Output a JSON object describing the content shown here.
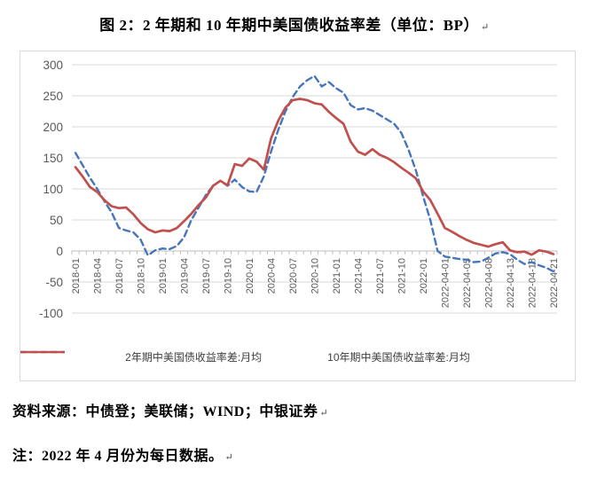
{
  "page": {
    "title": "图 2：2 年期和 10 年期中美国债收益率差（单位：BP）",
    "paragraph_mark": "↵",
    "source_note": "资料来源：中债登；美联储；WIND；中银证券",
    "footnote": "注：2022 年 4 月份为每日数据。"
  },
  "colors": {
    "series_2y": "#4575BC",
    "series_10y": "#C0504D",
    "gridline": "#D9D9D9",
    "axis_line": "#BFBFBF",
    "tick_label": "#595959",
    "legend_text": "#404040"
  },
  "chart_data": {
    "type": "line",
    "title": "图 2：2 年期和 10 年期中美国债收益率差（单位：BP）",
    "unit": "BP",
    "grid": true,
    "legend_position": "bottom",
    "ylim": [
      -100,
      300
    ],
    "yticks": [
      300,
      250,
      200,
      150,
      100,
      50,
      0,
      -50,
      -100
    ],
    "note": "2022 年 4 月份为每日数据",
    "categories": [
      "2018-01",
      "2018-02",
      "2018-03",
      "2018-04",
      "2018-05",
      "2018-06",
      "2018-07",
      "2018-08",
      "2018-09",
      "2018-10",
      "2018-11",
      "2018-12",
      "2019-01",
      "2019-02",
      "2019-03",
      "2019-04",
      "2019-05",
      "2019-06",
      "2019-07",
      "2019-08",
      "2019-09",
      "2019-10",
      "2019-11",
      "2019-12",
      "2020-01",
      "2020-02",
      "2020-03",
      "2020-04",
      "2020-05",
      "2020-06",
      "2020-07",
      "2020-08",
      "2020-09",
      "2020-10",
      "2020-11",
      "2020-12",
      "2021-01",
      "2021-02",
      "2021-03",
      "2021-04",
      "2021-05",
      "2021-06",
      "2021-07",
      "2021-08",
      "2021-09",
      "2021-10",
      "2021-11",
      "2021-12",
      "2022-01",
      "2022-02",
      "2022-03",
      "2022-04-01",
      "2022-04-02",
      "2022-04-04",
      "2022-04-05",
      "2022-04-06",
      "2022-04-07",
      "2022-04-08",
      "2022-04-11",
      "2022-04-12",
      "2022-04-13",
      "2022-04-14",
      "2022-04-15",
      "2022-04-18",
      "2022-04-19",
      "2022-04-20",
      "2022-04-21"
    ],
    "x_tick_labels": [
      {
        "i": 0,
        "label": "2018-01"
      },
      {
        "i": 3,
        "label": "2018-04"
      },
      {
        "i": 6,
        "label": "2018-07"
      },
      {
        "i": 9,
        "label": "2018-10"
      },
      {
        "i": 12,
        "label": "2019-01"
      },
      {
        "i": 15,
        "label": "2019-04"
      },
      {
        "i": 18,
        "label": "2019-07"
      },
      {
        "i": 21,
        "label": "2019-10"
      },
      {
        "i": 24,
        "label": "2020-01"
      },
      {
        "i": 27,
        "label": "2020-04"
      },
      {
        "i": 30,
        "label": "2020-07"
      },
      {
        "i": 33,
        "label": "2020-10"
      },
      {
        "i": 36,
        "label": "2021-01"
      },
      {
        "i": 39,
        "label": "2021-04"
      },
      {
        "i": 42,
        "label": "2021-07"
      },
      {
        "i": 45,
        "label": "2021-10"
      },
      {
        "i": 48,
        "label": "2022-01"
      },
      {
        "i": 51,
        "label": "2022-04-01"
      },
      {
        "i": 54,
        "label": "2022-04-05"
      },
      {
        "i": 57,
        "label": "2022-04-08"
      },
      {
        "i": 60,
        "label": "2022-04-13"
      },
      {
        "i": 63,
        "label": "2022-04-18"
      },
      {
        "i": 66,
        "label": "2022-04-21"
      }
    ],
    "series": [
      {
        "name": "2年期中美国债收益率差:月均",
        "style": "dashed",
        "color": "#4575BC",
        "values": [
          158,
          138,
          118,
          100,
          80,
          62,
          37,
          33,
          30,
          18,
          -7,
          1,
          4,
          3,
          8,
          22,
          50,
          70,
          90,
          105,
          113,
          105,
          115,
          103,
          96,
          95,
          120,
          160,
          195,
          225,
          248,
          265,
          275,
          282,
          265,
          272,
          262,
          255,
          235,
          228,
          230,
          226,
          219,
          212,
          205,
          190,
          163,
          130,
          88,
          50,
          0,
          -9,
          -11,
          -13,
          -14,
          -18,
          -17,
          -11,
          -4,
          -2,
          -5,
          -14,
          -21,
          -18,
          -23,
          -27,
          -33
        ]
      },
      {
        "name": "10年期中美国债收益率差:月均",
        "style": "solid",
        "color": "#C0504D",
        "values": [
          135,
          120,
          103,
          95,
          82,
          72,
          69,
          70,
          59,
          45,
          35,
          30,
          33,
          32,
          37,
          48,
          60,
          74,
          86,
          105,
          113,
          106,
          140,
          137,
          149,
          144,
          131,
          181,
          210,
          231,
          243,
          245,
          243,
          238,
          236,
          224,
          214,
          205,
          176,
          160,
          155,
          164,
          155,
          150,
          143,
          134,
          126,
          117,
          96,
          82,
          60,
          37,
          31,
          24,
          18,
          13,
          10,
          7,
          11,
          14,
          1,
          -2,
          -1,
          -6,
          1,
          -1,
          -5
        ]
      }
    ]
  }
}
